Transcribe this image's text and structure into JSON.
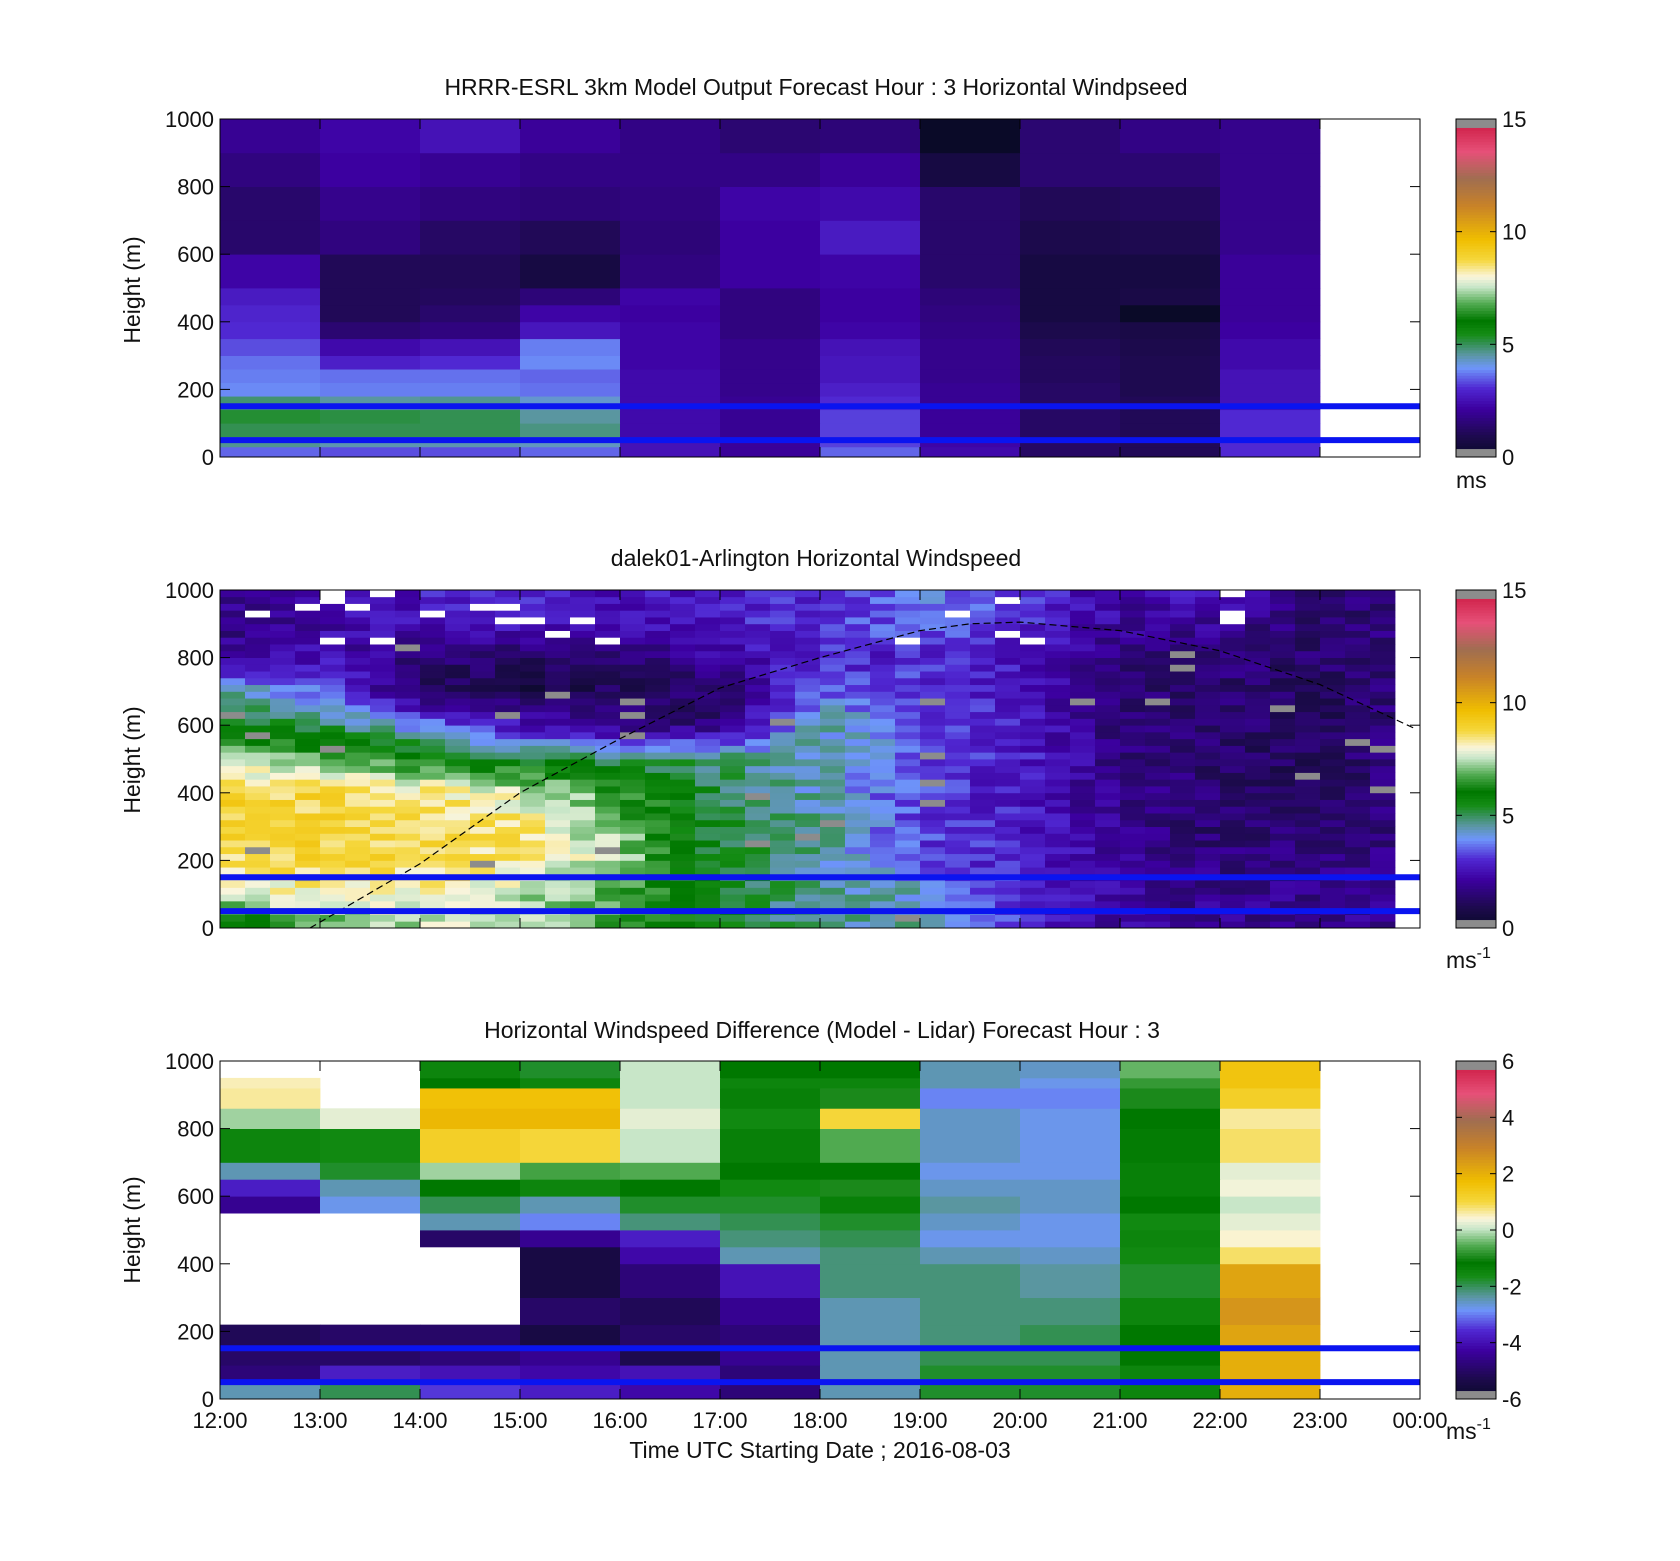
{
  "figure": {
    "xlabel": "Time UTC  Starting Date ; 2016-08-03",
    "x_ticks": [
      "12:00",
      "13:00",
      "14:00",
      "15:00",
      "16:00",
      "17:00",
      "18:00",
      "19:00",
      "20:00",
      "21:00",
      "22:00",
      "23:00",
      "00:00"
    ]
  },
  "chart_data": [
    {
      "type": "heatmap",
      "title": "HRRR-ESRL 3km Model Output   Forecast Hour : 3 Horizontal Windpseed",
      "ylabel": "Height (m)",
      "xlabel": "",
      "ylim": [
        0,
        1000
      ],
      "y_ticks": [
        "0",
        "200",
        "400",
        "600",
        "800",
        "1000"
      ],
      "colorbar": {
        "range": [
          0,
          15
        ],
        "ticks": [
          "0",
          "5",
          "10",
          "15"
        ],
        "unit": "ms",
        "unit_sup": ""
      },
      "reference_lines_m": [
        50,
        150
      ],
      "x_hours": [
        12,
        13,
        14,
        15,
        16,
        17,
        18,
        19,
        20,
        21,
        22
      ],
      "height_levels_m": [
        [
          0,
          30
        ],
        [
          30,
          60
        ],
        [
          60,
          100
        ],
        [
          100,
          140
        ],
        [
          140,
          180
        ],
        [
          180,
          220
        ],
        [
          220,
          260
        ],
        [
          260,
          300
        ],
        [
          300,
          350
        ],
        [
          350,
          400
        ],
        [
          400,
          450
        ],
        [
          450,
          500
        ],
        [
          500,
          600
        ],
        [
          600,
          700
        ],
        [
          700,
          800
        ],
        [
          800,
          900
        ],
        [
          900,
          1000
        ]
      ],
      "values": [
        [
          3.5,
          3.3,
          3.3,
          3.5,
          2.5,
          2.0,
          3.5,
          2.3,
          1.2,
          1.0,
          3.0
        ],
        [
          4.6,
          4.4,
          4.4,
          4.3,
          2.5,
          2.0,
          3.2,
          2.2,
          1.2,
          1.0,
          3.0
        ],
        [
          5.0,
          5.0,
          5.0,
          4.7,
          2.3,
          1.9,
          3.2,
          2.0,
          1.2,
          1.0,
          3.0
        ],
        [
          5.2,
          5.1,
          5.0,
          4.5,
          2.3,
          1.9,
          3.2,
          2.0,
          1.2,
          1.0,
          3.0
        ],
        [
          4.8,
          4.5,
          4.6,
          4.2,
          2.3,
          1.9,
          3.0,
          1.9,
          1.2,
          1.0,
          2.5
        ],
        [
          3.8,
          3.7,
          3.7,
          3.6,
          2.3,
          1.8,
          2.8,
          1.9,
          1.2,
          0.9,
          2.5
        ],
        [
          3.7,
          3.6,
          3.6,
          3.5,
          2.3,
          1.8,
          2.6,
          1.8,
          1.1,
          0.9,
          2.5
        ],
        [
          3.6,
          2.8,
          3.0,
          3.8,
          2.2,
          1.8,
          2.6,
          1.8,
          1.1,
          0.9,
          2.3
        ],
        [
          3.3,
          2.3,
          2.5,
          3.7,
          2.2,
          1.8,
          2.5,
          1.8,
          1.0,
          0.8,
          2.3
        ],
        [
          3.0,
          1.4,
          1.6,
          2.6,
          2.2,
          1.6,
          2.2,
          1.7,
          0.8,
          0.7,
          2.1
        ],
        [
          2.9,
          1.0,
          1.3,
          2.2,
          2.1,
          1.6,
          2.1,
          1.6,
          0.6,
          0.0,
          2.0
        ],
        [
          2.7,
          1.0,
          1.1,
          1.5,
          2.2,
          1.6,
          2.1,
          1.5,
          0.6,
          0.7,
          2.0
        ],
        [
          2.2,
          1.0,
          1.0,
          0.6,
          1.6,
          2.1,
          2.2,
          1.3,
          0.6,
          0.6,
          2.0
        ],
        [
          1.3,
          1.6,
          1.2,
          1.0,
          1.5,
          2.1,
          2.7,
          1.3,
          0.8,
          0.9,
          1.8
        ],
        [
          1.3,
          1.8,
          1.6,
          1.5,
          1.6,
          2.2,
          2.3,
          1.3,
          1.0,
          1.1,
          1.8
        ],
        [
          1.6,
          2.1,
          1.9,
          1.7,
          1.7,
          1.7,
          2.0,
          0.6,
          1.4,
          1.4,
          1.8
        ],
        [
          1.9,
          2.2,
          2.5,
          2.0,
          1.7,
          1.4,
          1.5,
          0.0,
          1.4,
          1.7,
          1.8
        ]
      ],
      "missing_note": "gray cells mark values outside the colour scale"
    },
    {
      "type": "heatmap",
      "title": "dalek01-Arlington  Horizontal Windspeed",
      "ylabel": "Height (m)",
      "xlabel": "",
      "ylim": [
        0,
        1000
      ],
      "y_ticks": [
        "0",
        "200",
        "400",
        "600",
        "800",
        "1000"
      ],
      "colorbar": {
        "range": [
          0,
          15
        ],
        "ticks": [
          "0",
          "5",
          "10",
          "15"
        ],
        "unit": "ms",
        "unit_sup": "-1"
      },
      "reference_lines_m": [
        50,
        150
      ],
      "x_range_hours": [
        12,
        23.75
      ],
      "profile_spacing_hours": 0.25,
      "column_keys_hours": [
        12,
        13,
        14,
        15,
        16,
        17,
        18,
        19,
        20,
        21,
        22,
        23,
        23.75
      ],
      "row_keys_m": [
        0,
        100,
        200,
        300,
        400,
        500,
        600,
        700,
        800,
        900,
        1000
      ],
      "values": [
        [
          5.3,
          6.5,
          7.5,
          7.3,
          6.5,
          5.5,
          4.5,
          4.5,
          3.2,
          2.0,
          1.8,
          1.8,
          1.8
        ],
        [
          7.5,
          8.2,
          8.0,
          7.3,
          6.5,
          5.5,
          4.5,
          4.3,
          3.0,
          2.0,
          1.8,
          1.8,
          1.8
        ],
        [
          8.5,
          8.7,
          8.6,
          8.3,
          7.3,
          5.2,
          4.5,
          3.2,
          2.8,
          2.0,
          1.6,
          1.8,
          1.8
        ],
        [
          8.8,
          8.8,
          8.5,
          8.5,
          7.0,
          5.2,
          4.5,
          3.2,
          2.8,
          1.8,
          1.3,
          1.3,
          1.6
        ],
        [
          8.8,
          8.7,
          8.5,
          7.7,
          6.5,
          5.0,
          4.3,
          3.2,
          2.6,
          1.8,
          1.3,
          1.0,
          1.6
        ],
        [
          7.4,
          7.0,
          6.0,
          5.5,
          5.0,
          4.8,
          4.3,
          3.3,
          2.8,
          1.6,
          1.3,
          1.0,
          1.6
        ],
        [
          5.8,
          5.0,
          3.8,
          2.5,
          1.6,
          1.6,
          4.5,
          3.3,
          2.8,
          1.4,
          1.5,
          1.0,
          1.6
        ],
        [
          4.5,
          3.6,
          1.2,
          0.7,
          1.0,
          1.2,
          3.5,
          3.2,
          2.6,
          1.3,
          1.4,
          1.0,
          1.6
        ],
        [
          2.0,
          2.5,
          1.6,
          1.0,
          1.5,
          2.2,
          2.8,
          2.8,
          2.6,
          1.6,
          1.5,
          1.3,
          1.6
        ],
        [
          1.6,
          2.2,
          2.5,
          2.8,
          2.2,
          2.8,
          3.0,
          3.6,
          3.0,
          2.0,
          2.0,
          1.3,
          1.6
        ],
        [
          1.8,
          2.0,
          2.6,
          3.0,
          2.4,
          2.8,
          3.0,
          3.8,
          3.0,
          2.2,
          2.6,
          1.3,
          1.6
        ]
      ],
      "overlay_curve": {
        "style": "dashed",
        "x_hours": [
          12.9,
          14,
          15,
          16,
          17,
          18,
          19,
          19.5,
          20,
          21,
          22,
          23,
          23.95
        ],
        "height_m": [
          0,
          190,
          400,
          560,
          710,
          800,
          880,
          900,
          905,
          880,
          820,
          720,
          590
        ]
      }
    },
    {
      "type": "heatmap",
      "title": "Horizontal Windspeed Difference (Model - Lidar) Forecast Hour : 3",
      "ylabel": "Height (m)",
      "xlabel": "Time UTC  Starting Date ; 2016-08-03",
      "ylim": [
        0,
        1000
      ],
      "y_ticks": [
        "0",
        "200",
        "400",
        "600",
        "800",
        "1000"
      ],
      "colorbar": {
        "range": [
          -6,
          6
        ],
        "ticks": [
          "-6",
          "-4",
          "-2",
          "0",
          "2",
          "4",
          "6"
        ],
        "unit": "ms",
        "unit_sup": "-1"
      },
      "reference_lines_m": [
        50,
        150
      ],
      "x_hours": [
        12,
        13,
        14,
        15,
        16,
        17,
        18,
        19,
        20,
        21,
        22
      ],
      "height_levels_m": [
        [
          0,
          50
        ],
        [
          50,
          100
        ],
        [
          100,
          150
        ],
        [
          150,
          220
        ],
        [
          220,
          300
        ],
        [
          300,
          400
        ],
        [
          400,
          450
        ],
        [
          450,
          500
        ],
        [
          500,
          550
        ],
        [
          550,
          600
        ],
        [
          600,
          650
        ],
        [
          650,
          700
        ],
        [
          700,
          800
        ],
        [
          800,
          860
        ],
        [
          860,
          920
        ],
        [
          920,
          950
        ],
        [
          950,
          1000
        ]
      ],
      "values": [
        [
          -2.5,
          -2.0,
          -3.5,
          -3.8,
          -4.2,
          -4.8,
          -2.5,
          -1.8,
          -1.8,
          -1.5,
          2.0
        ],
        [
          -4.8,
          -3.8,
          -4.0,
          -4.2,
          -4.0,
          -4.8,
          -2.5,
          -1.8,
          -1.8,
          -1.5,
          2.0
        ],
        [
          -5.0,
          -5.0,
          -4.8,
          -4.5,
          -5.3,
          -4.5,
          -2.5,
          -2.0,
          -2.0,
          -1.2,
          2.0
        ],
        [
          -5.2,
          -5.0,
          -5.0,
          -5.5,
          -5.0,
          -4.8,
          -2.5,
          -2.2,
          -2.0,
          -1.2,
          2.2
        ],
        [
          null,
          null,
          null,
          -5.0,
          -5.2,
          -4.5,
          -2.5,
          -2.2,
          -2.2,
          -1.5,
          2.5
        ],
        [
          null,
          null,
          null,
          -5.5,
          -4.8,
          -4.0,
          -2.2,
          -2.2,
          -2.4,
          -1.8,
          2.2
        ],
        [
          null,
          null,
          null,
          -5.5,
          -4.2,
          -2.5,
          -2.2,
          -2.5,
          -2.6,
          -1.6,
          0.8
        ],
        [
          null,
          null,
          -5.0,
          -4.5,
          -3.8,
          -2.2,
          -2.0,
          -2.8,
          -2.8,
          -1.5,
          0.4
        ],
        [
          null,
          null,
          -2.5,
          -3.0,
          -2.2,
          -2.0,
          -1.8,
          -2.6,
          -2.8,
          -1.6,
          0.2
        ],
        [
          -4.5,
          -2.8,
          -2.0,
          -2.5,
          -1.8,
          -1.8,
          -1.4,
          -2.4,
          -2.6,
          -1.2,
          0.0
        ],
        [
          -3.8,
          -2.5,
          -1.2,
          -1.5,
          -1.2,
          -1.6,
          -1.0,
          -2.6,
          -2.6,
          -1.4,
          0.3
        ],
        [
          -2.5,
          -1.8,
          -0.2,
          -0.7,
          -0.6,
          -1.2,
          -1.2,
          -2.8,
          -2.8,
          -1.4,
          0.2
        ],
        [
          -1.5,
          -1.6,
          1.2,
          1.0,
          0.0,
          -1.4,
          -0.6,
          -2.6,
          -2.8,
          -1.3,
          0.8
        ],
        [
          -0.2,
          0.2,
          1.8,
          1.8,
          0.2,
          -1.6,
          1.0,
          -2.6,
          -2.8,
          -1.2,
          0.6
        ],
        [
          0.6,
          null,
          1.6,
          1.6,
          0.0,
          -1.4,
          -1.0,
          -3.0,
          -3.0,
          -1.0,
          1.2
        ],
        [
          0.5,
          null,
          -1.2,
          -1.5,
          0.0,
          -1.5,
          -1.5,
          -2.5,
          -2.8,
          -0.8,
          1.5
        ],
        [
          null,
          null,
          -1.5,
          -1.8,
          0.0,
          -1.2,
          -1.2,
          -2.5,
          -2.6,
          -0.5,
          1.5
        ]
      ],
      "blank_regions": "white cells have no data"
    }
  ]
}
